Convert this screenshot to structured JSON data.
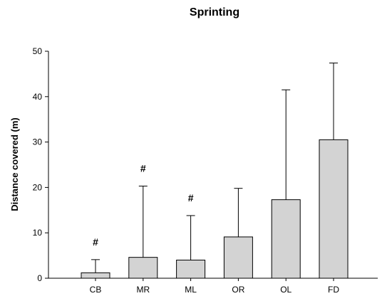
{
  "chart_data": {
    "type": "bar",
    "title": "Sprinting",
    "xlabel": "",
    "ylabel": "Distance covered (m)",
    "ylim": [
      0,
      50
    ],
    "yticks": [
      0,
      10,
      20,
      30,
      40,
      50
    ],
    "grid": false,
    "categories": [
      "CB",
      "MR",
      "ML",
      "OR",
      "OL",
      "FD"
    ],
    "series": [
      {
        "values": [
          1.2,
          4.6,
          4.0,
          9.1,
          17.3,
          30.5
        ],
        "error_upper": [
          4.1,
          20.3,
          13.8,
          19.8,
          41.5,
          47.4
        ]
      }
    ],
    "annotations": [
      {
        "category": "CB",
        "text": "#"
      },
      {
        "category": "MR",
        "text": "#"
      },
      {
        "category": "ML",
        "text": "#"
      }
    ]
  }
}
